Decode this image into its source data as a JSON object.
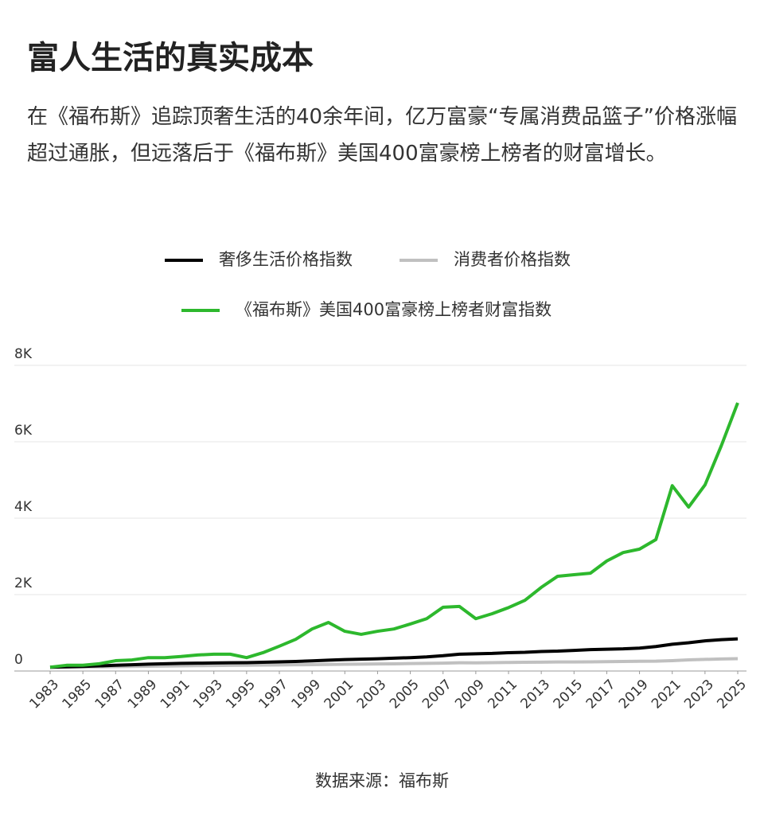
{
  "chart_data": {
    "type": "line",
    "title": "富人生活的真实成本",
    "subtitle": "在《福布斯》追踪顶奢生活的40余年间，亿万富豪“专属消费品篮子”价格涨幅超过通胀，但远落后于《福布斯》美国400富豪榜上榜者的财富增长。",
    "source": "数据来源：福布斯",
    "x": [
      1983,
      1984,
      1985,
      1986,
      1987,
      1988,
      1989,
      1990,
      1991,
      1992,
      1993,
      1994,
      1995,
      1996,
      1997,
      1998,
      1999,
      2000,
      2001,
      2002,
      2003,
      2004,
      2005,
      2006,
      2007,
      2008,
      2009,
      2010,
      2011,
      2012,
      2013,
      2014,
      2015,
      2016,
      2017,
      2018,
      2019,
      2020,
      2021,
      2022,
      2023,
      2024,
      2025
    ],
    "xlim": [
      1983,
      2025
    ],
    "xticks": [
      1983,
      1985,
      1987,
      1989,
      1991,
      1993,
      1995,
      1997,
      1999,
      2001,
      2003,
      2005,
      2007,
      2009,
      2011,
      2013,
      2015,
      2017,
      2019,
      2021,
      2023,
      2025
    ],
    "ylim": [
      0,
      8000
    ],
    "yticks": [
      {
        "value": 0,
        "label": "0"
      },
      {
        "value": 2000,
        "label": "2K"
      },
      {
        "value": 4000,
        "label": "4K"
      },
      {
        "value": 6000,
        "label": "6K"
      },
      {
        "value": 8000,
        "label": "8K"
      }
    ],
    "grid": true,
    "series": [
      {
        "name": "奢侈生活价格指数",
        "color": "#000000",
        "values": [
          100,
          110,
          120,
          135,
          150,
          165,
          180,
          190,
          200,
          205,
          210,
          215,
          220,
          230,
          240,
          250,
          265,
          285,
          300,
          310,
          320,
          335,
          350,
          370,
          400,
          440,
          450,
          460,
          480,
          490,
          510,
          520,
          540,
          560,
          570,
          580,
          600,
          640,
          700,
          740,
          790,
          820,
          840
        ]
      },
      {
        "name": "消费者价格指数",
        "color": "#c0c0c0",
        "values": [
          100,
          104,
          107,
          110,
          114,
          119,
          125,
          131,
          136,
          140,
          144,
          148,
          152,
          156,
          160,
          163,
          166,
          172,
          177,
          179,
          184,
          188,
          195,
          201,
          207,
          215,
          214,
          218,
          225,
          229,
          233,
          237,
          237,
          240,
          245,
          251,
          255,
          258,
          271,
          292,
          304,
          314,
          322
        ]
      },
      {
        "name": "《福布斯》美国400富豪榜上榜者财富指数",
        "color": "#2db82d",
        "values": [
          100,
          150,
          150,
          190,
          270,
          290,
          350,
          350,
          380,
          420,
          440,
          440,
          350,
          480,
          650,
          830,
          1100,
          1270,
          1040,
          960,
          1040,
          1100,
          1230,
          1370,
          1670,
          1690,
          1370,
          1500,
          1660,
          1850,
          2190,
          2480,
          2520,
          2560,
          2880,
          3100,
          3190,
          3440,
          4850,
          4290,
          4870,
          5900,
          7020
        ]
      }
    ]
  }
}
